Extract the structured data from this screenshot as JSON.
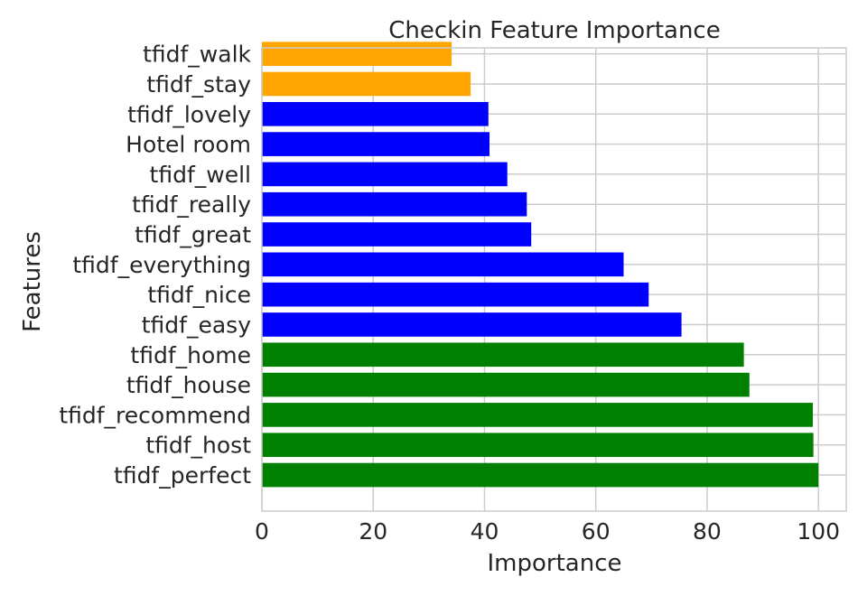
{
  "chart_data": {
    "type": "bar",
    "orientation": "horizontal",
    "title": "Checkin Feature Importance",
    "xlabel": "Importance",
    "ylabel": "Features",
    "xlim": [
      0,
      105
    ],
    "xticks": [
      0,
      20,
      40,
      60,
      80,
      100
    ],
    "grid": true,
    "legend": "none",
    "bars": [
      {
        "label": "tfidf_perfect",
        "value": 100.0,
        "color": "#008000"
      },
      {
        "label": "tfidf_host",
        "value": 99.1,
        "color": "#008000"
      },
      {
        "label": "tfidf_recommend",
        "value": 99.0,
        "color": "#008000"
      },
      {
        "label": "tfidf_house",
        "value": 87.6,
        "color": "#008000"
      },
      {
        "label": "tfidf_home",
        "value": 86.6,
        "color": "#008000"
      },
      {
        "label": "tfidf_easy",
        "value": 75.4,
        "color": "#0000ff"
      },
      {
        "label": "tfidf_nice",
        "value": 69.5,
        "color": "#0000ff"
      },
      {
        "label": "tfidf_everything",
        "value": 65.0,
        "color": "#0000ff"
      },
      {
        "label": "tfidf_great",
        "value": 48.4,
        "color": "#0000ff"
      },
      {
        "label": "tfidf_really",
        "value": 47.6,
        "color": "#0000ff"
      },
      {
        "label": "tfidf_well",
        "value": 44.1,
        "color": "#0000ff"
      },
      {
        "label": "Hotel room",
        "value": 40.9,
        "color": "#0000ff"
      },
      {
        "label": "tfidf_lovely",
        "value": 40.7,
        "color": "#0000ff"
      },
      {
        "label": "tfidf_stay",
        "value": 37.5,
        "color": "#ffa500"
      },
      {
        "label": "tfidf_walk",
        "value": 34.1,
        "color": "#ffa500"
      }
    ]
  }
}
